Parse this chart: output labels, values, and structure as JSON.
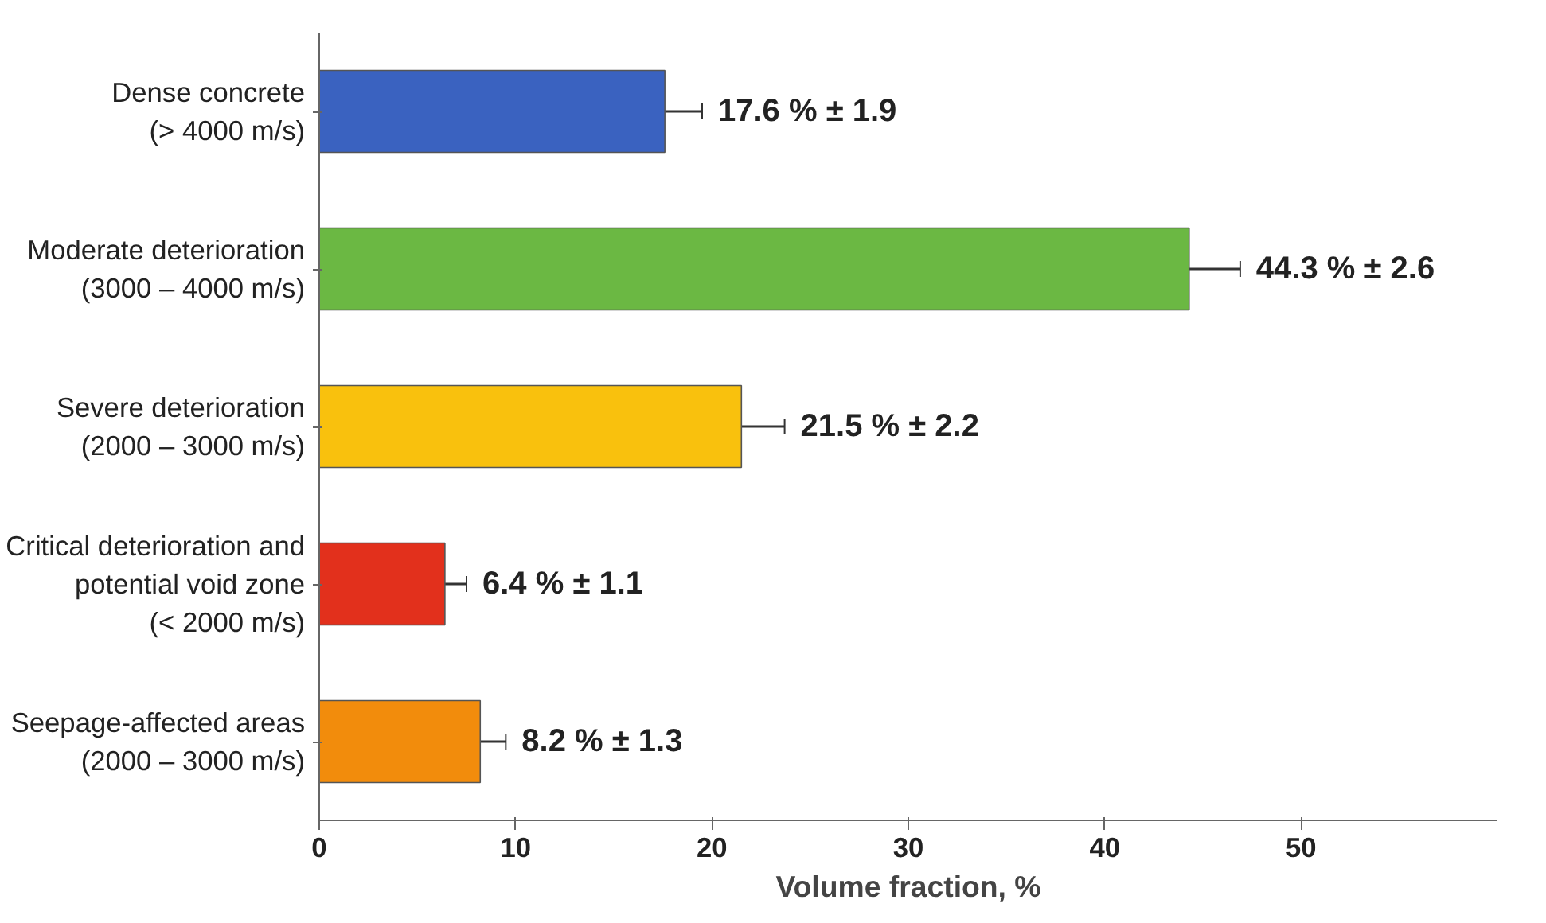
{
  "chart_data": {
    "type": "bar",
    "orientation": "horizontal",
    "xlabel": "Volume fraction, %",
    "categories": [
      "Dense concrete\n(> 4000 m/s)",
      "Moderate deterioration\n(3000 – 4000 m/s)",
      "Severe deterioration\n(2000 – 3000 m/s)",
      "Critical deterioration and\npotential void zone\n(< 2000 m/s)",
      "Seepage-affected areas\n(2000 – 3000 m/s)"
    ],
    "values": [
      17.6,
      44.3,
      21.5,
      6.4,
      8.2
    ],
    "errors": [
      1.9,
      2.6,
      2.2,
      1.1,
      1.3
    ],
    "colors": [
      "#3a62c0",
      "#6bb843",
      "#f9c10d",
      "#e2301c",
      "#f28c0c"
    ],
    "value_labels": [
      "17.6 % ± 1.9",
      "44.3 % ± 2.6",
      "21.5 % ± 2.2",
      "6.4 % ± 1.1",
      "8.2 % ± 1.3"
    ],
    "xlim": [
      0,
      60
    ],
    "xticks": [
      0,
      10,
      20,
      30,
      40,
      50
    ],
    "grid": false
  }
}
